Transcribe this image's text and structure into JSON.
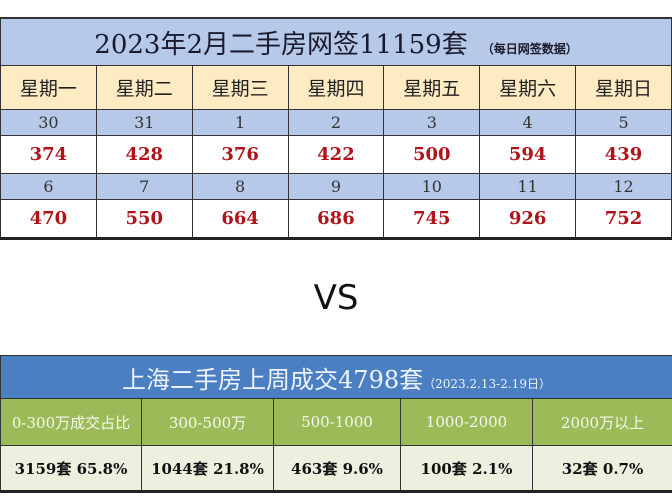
{
  "calendar": {
    "title": "2023年2月二手房网签11159套",
    "subtitle": "（每日网签数据）",
    "weekdays": [
      "星期一",
      "星期二",
      "星期三",
      "星期四",
      "星期五",
      "星期六",
      "星期日"
    ],
    "weeks": [
      {
        "dates": [
          "30",
          "31",
          "1",
          "2",
          "3",
          "4",
          "5"
        ],
        "values": [
          "374",
          "428",
          "376",
          "422",
          "500",
          "594",
          "439"
        ]
      },
      {
        "dates": [
          "6",
          "7",
          "8",
          "9",
          "10",
          "11",
          "12"
        ],
        "values": [
          "470",
          "550",
          "664",
          "686",
          "745",
          "926",
          "752"
        ]
      }
    ]
  },
  "vs_label": "VS",
  "weekly": {
    "title": "上海二手房上周成交4798套",
    "subtitle": "（2023.2.13-2.19日）",
    "headers": [
      "0-300万成交占比",
      "300-500万",
      "500-1000",
      "1000-2000",
      "2000万以上"
    ],
    "values": [
      "3159套 65.8%",
      "1044套 21.8%",
      "463套 9.6%",
      "100套 2.1%",
      "32套 0.7%"
    ]
  }
}
